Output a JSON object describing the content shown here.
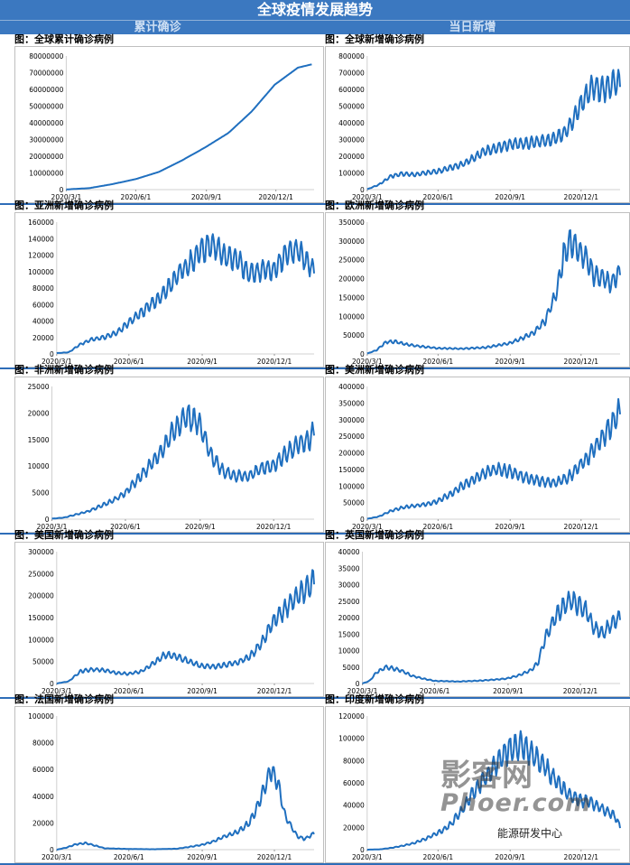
{
  "page": {
    "title": "全球疫情发展趋势",
    "left_header": "累计确诊",
    "right_header": "当日新增"
  },
  "watermark": {
    "line1": "影客网",
    "line2": "Phoer.com",
    "source": "能源研发中心"
  },
  "chart_data": [
    {
      "id": "global_cum",
      "type": "line",
      "title": "图：全球累计确诊病例",
      "color": "#1f6fbf",
      "ylim": [
        0,
        80000000
      ],
      "ystep": 10000000,
      "xticks": [
        "2020/3/1",
        "2020/6/1",
        "2020/9/1",
        "2020/12/1"
      ],
      "series": [
        {
          "x": [
            0,
            1,
            2,
            3,
            4,
            5,
            6,
            7,
            8,
            9,
            10,
            10.6
          ],
          "y": [
            100000,
            900000,
            3300000,
            6300000,
            10600000,
            17500000,
            25300000,
            33900000,
            46700000,
            62800000,
            73000000,
            75000000
          ]
        }
      ]
    },
    {
      "id": "global_new",
      "type": "line",
      "title": "图：全球新增确诊病例",
      "color": "#1f6fbf",
      "ylim": [
        0,
        800000
      ],
      "ystep": 100000,
      "xticks": [
        "2020/3/1",
        "2020/6/1",
        "2020/9/1",
        "2020/12/1"
      ],
      "series": [
        {
          "x": [
            0,
            0.5,
            1,
            1.5,
            2,
            3,
            4,
            5,
            6,
            7,
            7.5,
            8,
            8.5,
            9,
            9.5,
            10,
            10.5,
            10.7
          ],
          "y": [
            2000,
            30000,
            80000,
            95000,
            90000,
            110000,
            150000,
            230000,
            270000,
            280000,
            290000,
            310000,
            360000,
            500000,
            620000,
            600000,
            640000,
            650000
          ]
        }
      ]
    },
    {
      "id": "asia_new",
      "type": "line",
      "title": "图：亚洲新增确诊病例",
      "color": "#1f6fbf",
      "ylim": [
        0,
        160000
      ],
      "ystep": 20000,
      "xticks": [
        "2020/3/1",
        "2020/6/1",
        "2020/9/1",
        "2020/12/1"
      ],
      "series": [
        {
          "x": [
            0,
            0.5,
            1,
            1.5,
            2,
            2.5,
            3,
            3.5,
            4,
            4.5,
            5,
            5.5,
            6,
            6.5,
            7,
            7.5,
            8,
            8.5,
            9,
            9.5,
            10,
            10.5,
            10.7
          ],
          "y": [
            1000,
            2000,
            12000,
            18000,
            20000,
            26000,
            38000,
            50000,
            62000,
            75000,
            95000,
            108000,
            125000,
            133000,
            118000,
            115000,
            98000,
            102000,
            100000,
            120000,
            128000,
            108000,
            103000
          ]
        }
      ]
    },
    {
      "id": "europe_new",
      "type": "line",
      "title": "图：欧洲新增确诊病例",
      "color": "#1f6fbf",
      "ylim": [
        0,
        350000
      ],
      "ystep": 50000,
      "xticks": [
        "2020/3/1",
        "2020/6/1",
        "2020/9/1",
        "2020/12/1"
      ],
      "series": [
        {
          "x": [
            0,
            0.4,
            0.8,
            1.2,
            1.6,
            2,
            3,
            4,
            5,
            6,
            6.5,
            7,
            7.5,
            8,
            8.3,
            8.6,
            9,
            9.3,
            9.6,
            10,
            10.3,
            10.7
          ],
          "y": [
            1000,
            10000,
            32000,
            33000,
            26000,
            22000,
            15000,
            14000,
            17000,
            28000,
            40000,
            55000,
            85000,
            160000,
            260000,
            300000,
            270000,
            250000,
            210000,
            200000,
            185000,
            220000
          ]
        }
      ]
    },
    {
      "id": "africa_new",
      "type": "line",
      "title": "图：非洲新增确诊病例",
      "color": "#1f6fbf",
      "ylim": [
        0,
        25000
      ],
      "ystep": 5000,
      "xticks": [
        "2020/3/1",
        "2020/6/1",
        "2020/9/1",
        "2020/12/1"
      ],
      "series": [
        {
          "x": [
            0,
            0.5,
            1,
            1.5,
            2,
            2.5,
            3,
            3.5,
            4,
            4.5,
            5,
            5.5,
            6,
            6.5,
            7,
            7.5,
            8,
            8.5,
            9,
            9.5,
            10,
            10.5,
            10.7
          ],
          "y": [
            100,
            300,
            900,
            1500,
            2500,
            3500,
            5000,
            7500,
            10000,
            13000,
            17000,
            19500,
            18000,
            12000,
            9000,
            8200,
            8000,
            9500,
            10000,
            12000,
            14000,
            15000,
            16500
          ]
        }
      ]
    },
    {
      "id": "america_new",
      "type": "line",
      "title": "图：美洲新增确诊病例",
      "color": "#1f6fbf",
      "ylim": [
        0,
        400000
      ],
      "ystep": 50000,
      "xticks": [
        "2020/3/1",
        "2020/6/1",
        "2020/9/1",
        "2020/12/1"
      ],
      "series": [
        {
          "x": [
            0,
            0.5,
            1,
            1.5,
            2,
            2.5,
            3,
            3.5,
            4,
            4.5,
            5,
            5.5,
            6,
            6.5,
            7,
            7.5,
            8,
            8.5,
            9,
            9.5,
            10,
            10.5,
            10.7
          ],
          "y": [
            1000,
            8000,
            25000,
            35000,
            40000,
            45000,
            55000,
            75000,
            100000,
            120000,
            140000,
            150000,
            145000,
            130000,
            120000,
            112000,
            110000,
            125000,
            160000,
            200000,
            250000,
            300000,
            330000
          ]
        }
      ]
    },
    {
      "id": "usa_new",
      "type": "line",
      "title": "图：美国新增确诊病例",
      "color": "#1f6fbf",
      "ylim": [
        0,
        300000
      ],
      "ystep": 50000,
      "xticks": [
        "2020/3/1",
        "2020/6/1",
        "2020/9/1",
        "2020/12/1"
      ],
      "series": [
        {
          "x": [
            0,
            0.5,
            1,
            1.5,
            2,
            2.5,
            3,
            3.5,
            4,
            4.5,
            5,
            5.5,
            6,
            6.5,
            7,
            7.5,
            8,
            8.5,
            9,
            9.5,
            10,
            10.5,
            10.7
          ],
          "y": [
            100,
            5000,
            28000,
            32000,
            30000,
            24000,
            22000,
            27000,
            45000,
            65000,
            62000,
            50000,
            40000,
            38000,
            42000,
            48000,
            60000,
            90000,
            140000,
            170000,
            200000,
            220000,
            235000
          ]
        }
      ]
    },
    {
      "id": "uk_new",
      "type": "line",
      "title": "图：英国新增确诊病例",
      "color": "#1f6fbf",
      "ylim": [
        0,
        40000
      ],
      "ystep": 5000,
      "xticks": [
        "2020/3/1",
        "2020/6/1",
        "2020/9/1",
        "2020/12/1"
      ],
      "series": [
        {
          "x": [
            0,
            0.3,
            0.6,
            1,
            1.3,
            1.6,
            2,
            2.5,
            3,
            4,
            5,
            6,
            6.5,
            7,
            7.3,
            7.6,
            8,
            8.3,
            8.6,
            9,
            9.3,
            9.6,
            10,
            10.3,
            10.7
          ],
          "y": [
            0,
            800,
            3500,
            5000,
            4500,
            4000,
            2500,
            1500,
            800,
            600,
            900,
            1500,
            2500,
            4000,
            6500,
            14000,
            20000,
            23000,
            25000,
            24000,
            22000,
            17000,
            15000,
            18000,
            20000
          ]
        }
      ]
    },
    {
      "id": "france_new",
      "type": "line",
      "title": "图：法国新增确诊病例",
      "color": "#1f6fbf",
      "ylim": [
        0,
        100000
      ],
      "ystep": 20000,
      "xticks": [
        "2020/3/1",
        "2020/6/1",
        "2020/9/1",
        "2020/12/1"
      ],
      "series": [
        {
          "x": [
            0,
            0.4,
            0.8,
            1.2,
            1.6,
            2,
            3,
            4,
            5,
            5.5,
            6,
            6.5,
            7,
            7.5,
            8,
            8.3,
            8.6,
            8.9,
            9.2,
            9.5,
            10,
            10.3,
            10.7
          ],
          "y": [
            0,
            1500,
            4000,
            5000,
            3000,
            1000,
            500,
            300,
            700,
            2000,
            3500,
            6000,
            10000,
            13000,
            20000,
            30000,
            45000,
            60000,
            50000,
            25000,
            10000,
            8000,
            12000
          ]
        }
      ]
    },
    {
      "id": "india_new",
      "type": "line",
      "title": "图：印度新增确诊病例",
      "color": "#1f6fbf",
      "ylim": [
        0,
        120000
      ],
      "ystep": 20000,
      "xticks": [
        "2020/3/1",
        "2020/6/1",
        "2020/9/1",
        "2020/12/1"
      ],
      "series": [
        {
          "x": [
            0,
            0.5,
            1,
            1.5,
            2,
            2.5,
            3,
            3.5,
            4,
            4.5,
            5,
            5.5,
            6,
            6.5,
            7,
            7.5,
            8,
            8.5,
            9,
            9.5,
            10,
            10.5,
            10.7
          ],
          "y": [
            0,
            200,
            1500,
            3500,
            6000,
            10000,
            15000,
            22000,
            35000,
            52000,
            65000,
            78000,
            90000,
            94000,
            85000,
            75000,
            62000,
            50000,
            45000,
            42000,
            36000,
            30000,
            20000
          ]
        }
      ]
    }
  ]
}
